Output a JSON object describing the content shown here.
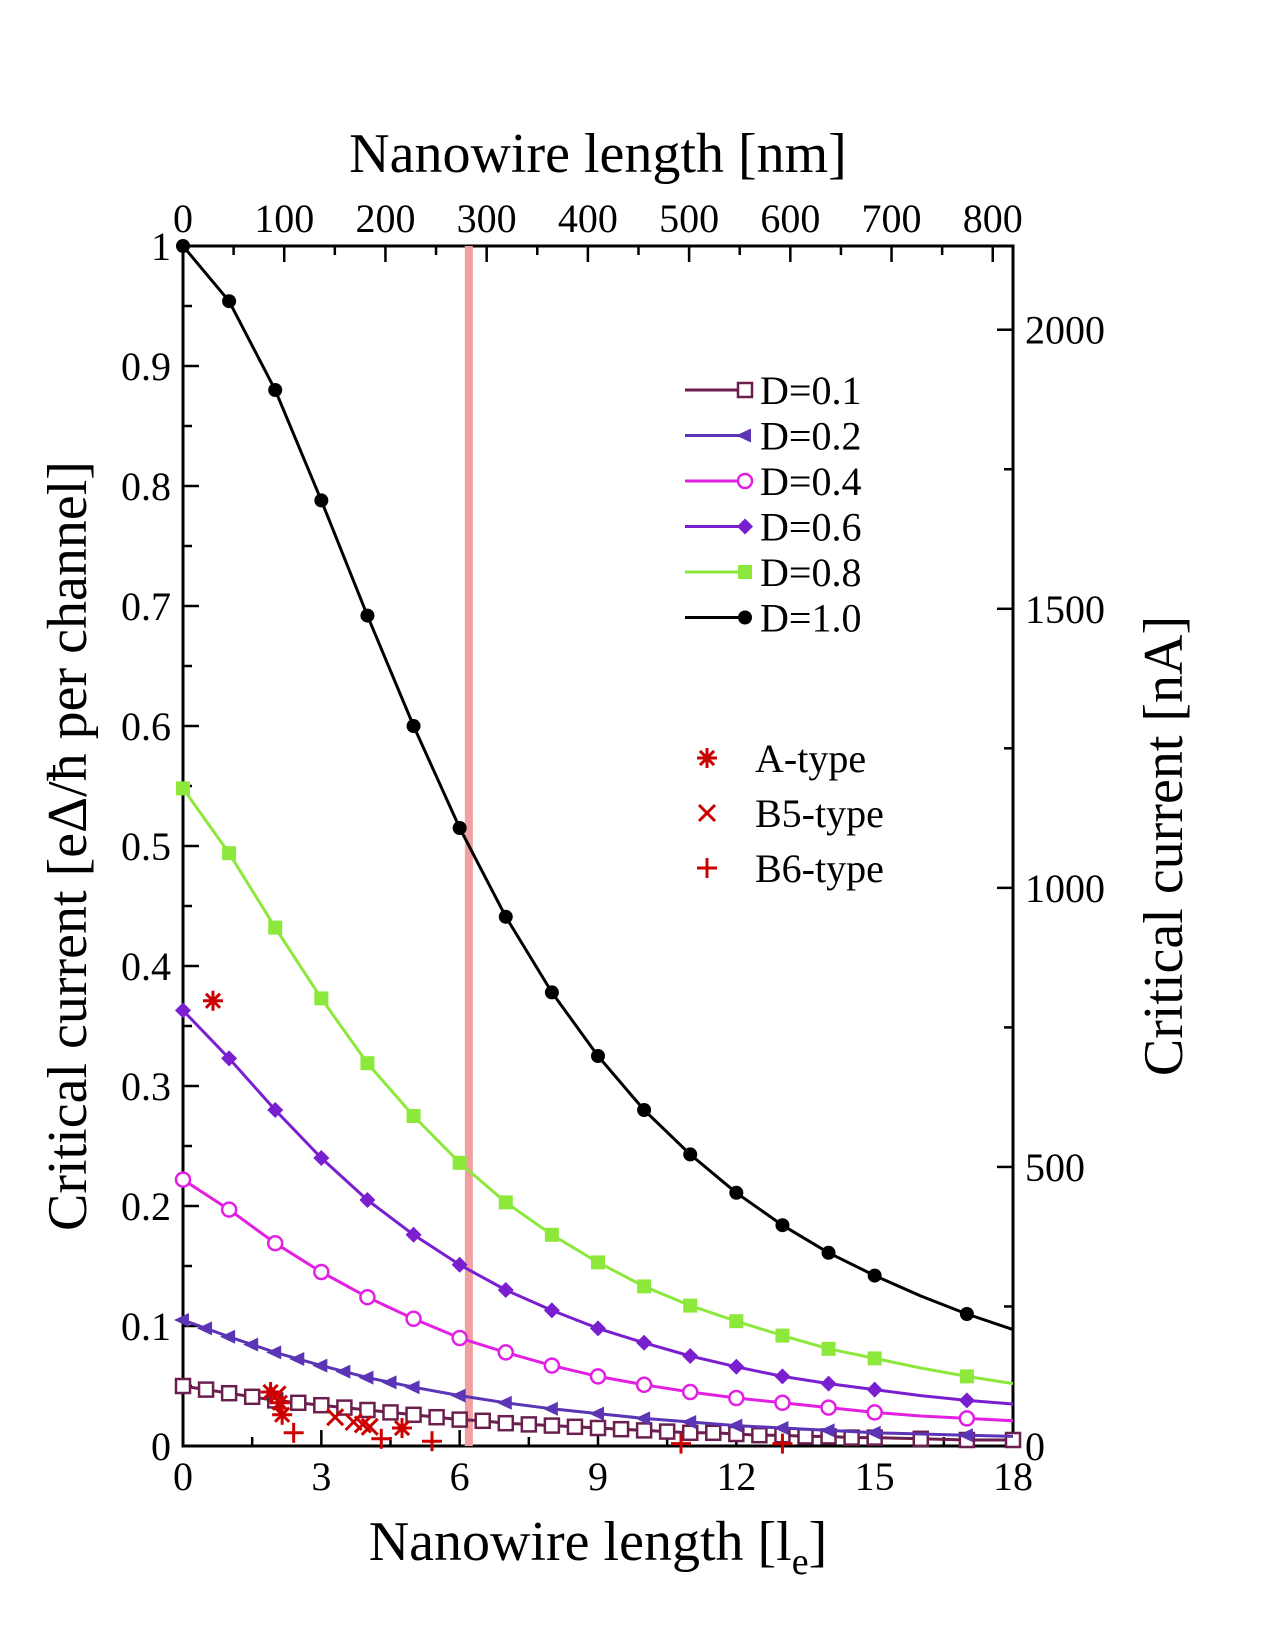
{
  "chart_data": {
    "type": "line",
    "title": "",
    "xlabel_bottom": "Nanowire length [l",
    "xlabel_bottom_subscript": "e",
    "xlabel_bottom_close": "]",
    "xlabel_top": "Nanowire length [nm]",
    "ylabel_left": "Critical current [eΔ/ħ per channel]",
    "ylabel_right": "Critical current [nA]",
    "xlim": [
      0,
      18
    ],
    "ylim": [
      0,
      1
    ],
    "xlim_top_nm": [
      0,
      820
    ],
    "ylim_right_nA": [
      0,
      2150
    ],
    "xticks_bottom": [
      0,
      3,
      6,
      9,
      12,
      15,
      18
    ],
    "xticks_top": [
      0,
      100,
      200,
      300,
      400,
      500,
      600,
      700,
      800
    ],
    "yticks_left": [
      0,
      0.1,
      0.2,
      0.3,
      0.4,
      0.5,
      0.6,
      0.7,
      0.8,
      0.9,
      1
    ],
    "yticks_left_labels": [
      "0",
      "0.1",
      "0.2",
      "0.3",
      "0.4",
      "0.5",
      "0.6",
      "0.7",
      "0.8",
      "0.9",
      "1"
    ],
    "yticks_right": [
      0,
      500,
      1000,
      1500,
      2000
    ],
    "grid": false,
    "vline_x": 6.2,
    "vline_color": "#f0a0a0",
    "legend_position": "top-right",
    "series": [
      {
        "name": "D=0.1",
        "color": "#6b1f4f",
        "marker": "open-square",
        "x": [
          0,
          0.5,
          1,
          1.5,
          2,
          2.5,
          3,
          3.5,
          4,
          4.5,
          5,
          5.5,
          6,
          6.5,
          7,
          7.5,
          8,
          8.5,
          9,
          9.5,
          10,
          10.5,
          11,
          11.5,
          12,
          12.5,
          13,
          13.5,
          14,
          14.5,
          15,
          16,
          17,
          18
        ],
        "y": [
          0.05,
          0.047,
          0.044,
          0.041,
          0.038,
          0.036,
          0.034,
          0.032,
          0.03,
          0.028,
          0.026,
          0.024,
          0.022,
          0.021,
          0.019,
          0.018,
          0.017,
          0.016,
          0.015,
          0.014,
          0.013,
          0.012,
          0.011,
          0.011,
          0.01,
          0.009,
          0.009,
          0.008,
          0.008,
          0.007,
          0.007,
          0.006,
          0.005,
          0.005
        ],
        "markers_x": [
          0,
          0.5,
          1,
          1.5,
          2,
          2.5,
          3,
          3.5,
          4,
          4.5,
          5,
          5.5,
          6,
          6.5,
          7,
          7.5,
          8,
          8.5,
          9,
          9.5,
          10,
          10.5,
          11,
          11.5,
          12,
          12.5,
          13,
          13.5,
          14,
          14.5,
          15,
          16,
          17,
          18
        ]
      },
      {
        "name": "D=0.2",
        "color": "#5b35b5",
        "marker": "left-triangle",
        "x": [
          0,
          1,
          2,
          3,
          4,
          5,
          6,
          7,
          8,
          9,
          10,
          11,
          12,
          13,
          14,
          15,
          16,
          17,
          18
        ],
        "y": [
          0.105,
          0.091,
          0.078,
          0.067,
          0.057,
          0.049,
          0.042,
          0.036,
          0.031,
          0.027,
          0.023,
          0.02,
          0.017,
          0.015,
          0.013,
          0.011,
          0.01,
          0.009,
          0.008
        ],
        "markers_x": [
          0,
          0.5,
          1,
          1.5,
          2,
          2.5,
          3,
          3.5,
          4,
          4.5,
          5,
          6,
          7,
          8,
          9,
          10,
          11,
          12,
          13,
          14,
          15,
          17
        ]
      },
      {
        "name": "D=0.4",
        "color": "#e21fe2",
        "marker": "open-circle",
        "x": [
          0,
          1,
          2,
          3,
          4,
          5,
          6,
          7,
          8,
          9,
          10,
          11,
          12,
          13,
          14,
          15,
          16,
          17,
          18
        ],
        "y": [
          0.222,
          0.197,
          0.169,
          0.145,
          0.124,
          0.106,
          0.09,
          0.078,
          0.067,
          0.058,
          0.051,
          0.045,
          0.04,
          0.036,
          0.032,
          0.028,
          0.025,
          0.023,
          0.021
        ],
        "markers_x": [
          0,
          1,
          2,
          3,
          4,
          5,
          6,
          7,
          8,
          9,
          10,
          11,
          12,
          13,
          14,
          15,
          17
        ]
      },
      {
        "name": "D=0.6",
        "color": "#7a1fd0",
        "marker": "diamond",
        "x": [
          0,
          1,
          2,
          3,
          4,
          5,
          6,
          7,
          8,
          9,
          10,
          11,
          12,
          13,
          14,
          15,
          16,
          17,
          18
        ],
        "y": [
          0.363,
          0.323,
          0.28,
          0.24,
          0.205,
          0.176,
          0.151,
          0.13,
          0.113,
          0.098,
          0.086,
          0.075,
          0.066,
          0.058,
          0.052,
          0.047,
          0.042,
          0.038,
          0.035
        ],
        "markers_x": [
          0,
          1,
          2,
          3,
          4,
          5,
          6,
          7,
          8,
          9,
          10,
          11,
          12,
          13,
          14,
          15,
          17
        ]
      },
      {
        "name": "D=0.8",
        "color": "#8ce83a",
        "marker": "filled-square",
        "x": [
          0,
          1,
          2,
          3,
          4,
          5,
          6,
          7,
          8,
          9,
          10,
          11,
          12,
          13,
          14,
          15,
          16,
          17,
          18
        ],
        "y": [
          0.548,
          0.494,
          0.432,
          0.373,
          0.319,
          0.275,
          0.236,
          0.203,
          0.176,
          0.153,
          0.133,
          0.117,
          0.104,
          0.092,
          0.081,
          0.073,
          0.065,
          0.058,
          0.052
        ],
        "markers_x": [
          0,
          1,
          2,
          3,
          4,
          5,
          6,
          7,
          8,
          9,
          10,
          11,
          12,
          13,
          14,
          15,
          17
        ]
      },
      {
        "name": "D=1.0",
        "color": "#000000",
        "marker": "filled-circle",
        "x": [
          0,
          1,
          2,
          3,
          4,
          5,
          6,
          7,
          8,
          9,
          10,
          11,
          12,
          13,
          14,
          15,
          16,
          17,
          18
        ],
        "y": [
          1.0,
          0.954,
          0.88,
          0.788,
          0.692,
          0.6,
          0.515,
          0.441,
          0.378,
          0.325,
          0.28,
          0.243,
          0.211,
          0.184,
          0.161,
          0.142,
          0.125,
          0.11,
          0.097
        ],
        "markers_x": [
          0,
          1,
          2,
          3,
          4,
          5,
          6,
          7,
          8,
          9,
          10,
          11,
          12,
          13,
          14,
          15,
          17
        ]
      }
    ],
    "experimental": [
      {
        "name": "A-type",
        "marker": "asterisk",
        "color": "#cc0000",
        "points": [
          [
            0.65,
            0.371
          ],
          [
            1.9,
            0.045
          ],
          [
            2.1,
            0.036
          ],
          [
            2.15,
            0.026
          ],
          [
            4.75,
            0.015
          ]
        ]
      },
      {
        "name": "B5-type",
        "marker": "x",
        "color": "#cc0000",
        "points": [
          [
            2.05,
            0.043
          ],
          [
            3.3,
            0.024
          ],
          [
            3.7,
            0.02
          ],
          [
            3.9,
            0.018
          ],
          [
            4.05,
            0.016
          ]
        ]
      },
      {
        "name": "B6-type",
        "marker": "plus",
        "color": "#cc0000",
        "points": [
          [
            2.4,
            0.011
          ],
          [
            4.3,
            0.006
          ],
          [
            5.4,
            0.004
          ],
          [
            10.8,
            0.002
          ],
          [
            13.0,
            0.002
          ]
        ]
      }
    ]
  }
}
